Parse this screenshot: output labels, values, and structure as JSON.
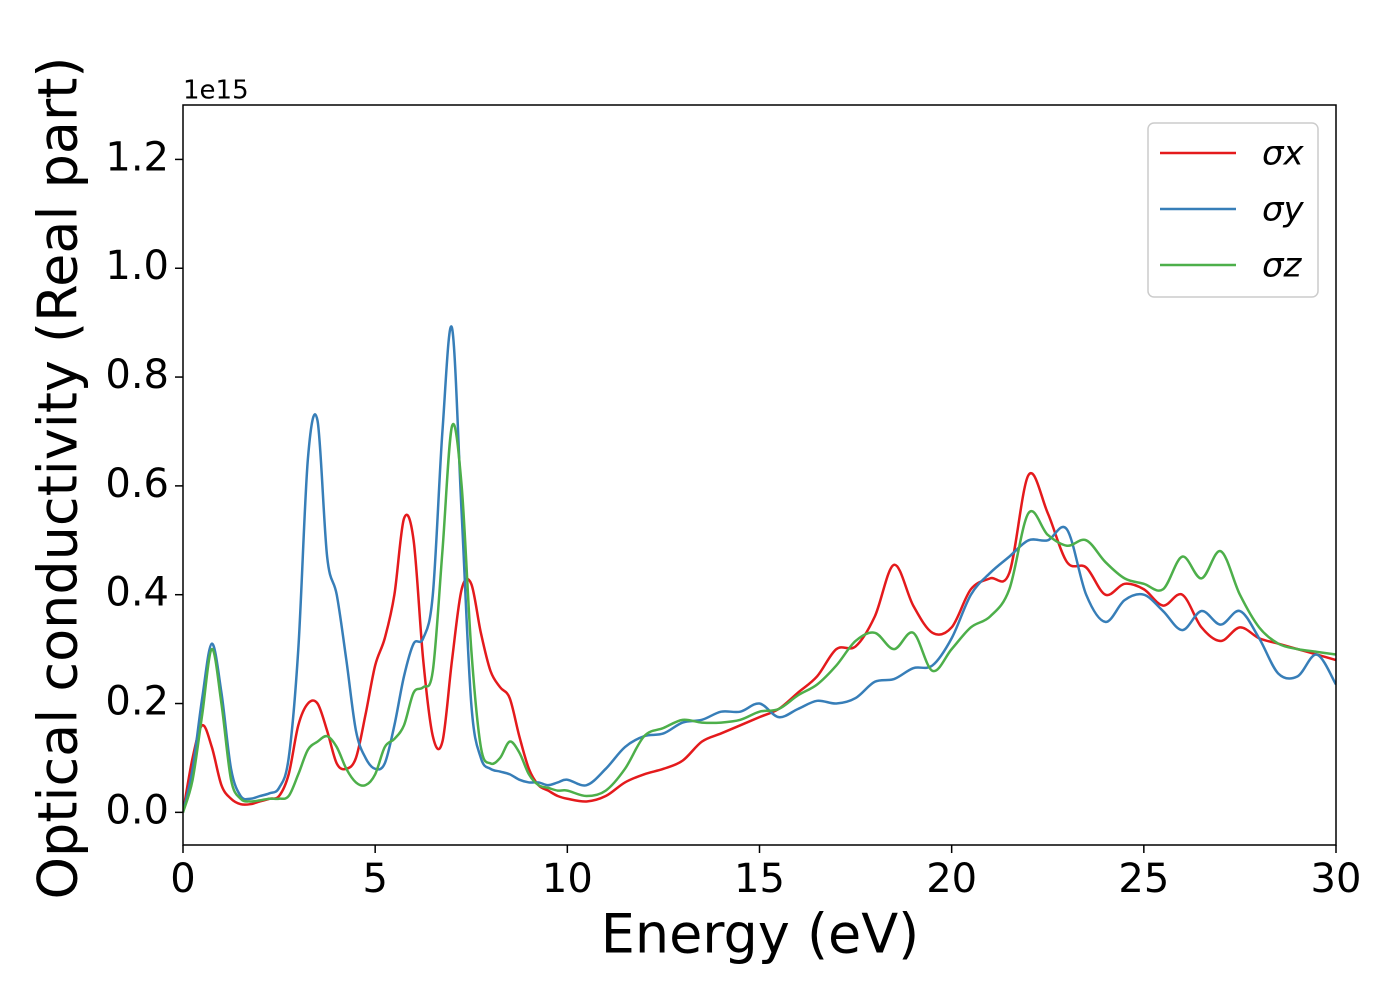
{
  "chart_data": {
    "type": "line",
    "y_label": "Optical conductivity (Real part)",
    "x_label": "Energy (eV)",
    "offset_label": "1e15",
    "xlim": [
      0,
      30
    ],
    "xticks": [
      0,
      5,
      10,
      15,
      20,
      25,
      30
    ],
    "ylim": [
      -0.06,
      1.3
    ],
    "yticks": [
      {
        "value": 0,
        "label": "0.0"
      },
      0.2,
      0.4,
      0.6,
      0.8,
      {
        "value": 1,
        "label": "1.0"
      },
      1.2
    ],
    "legend": "upper right",
    "grid": false,
    "x": [
      0,
      0.25,
      0.5,
      0.75,
      1,
      1.25,
      1.5,
      1.75,
      2,
      2.25,
      2.5,
      2.75,
      3,
      3.25,
      3.5,
      3.75,
      4,
      4.25,
      4.5,
      4.75,
      5,
      5.25,
      5.5,
      5.75,
      6,
      6.25,
      6.5,
      6.75,
      7,
      7.25,
      7.5,
      7.75,
      8,
      8.25,
      8.5,
      8.75,
      9,
      9.25,
      9.5,
      9.75,
      10,
      10.5,
      11,
      11.5,
      12,
      12.5,
      13,
      13.5,
      14,
      14.5,
      15,
      15.5,
      16,
      16.5,
      17,
      17.5,
      18,
      18.5,
      19,
      19.5,
      20,
      20.5,
      21,
      21.5,
      22,
      22.5,
      23,
      23.5,
      24,
      24.5,
      25,
      25.5,
      26,
      26.5,
      27,
      27.5,
      28,
      28.5,
      29,
      29.5,
      30
    ],
    "series": [
      {
        "name": "σx",
        "color": "#e41a1c",
        "values": [
          0,
          0.1,
          0.16,
          0.12,
          0.05,
          0.025,
          0.015,
          0.015,
          0.02,
          0.025,
          0.03,
          0.07,
          0.16,
          0.2,
          0.2,
          0.15,
          0.09,
          0.08,
          0.1,
          0.18,
          0.27,
          0.32,
          0.4,
          0.54,
          0.5,
          0.28,
          0.14,
          0.13,
          0.28,
          0.41,
          0.42,
          0.33,
          0.26,
          0.23,
          0.21,
          0.14,
          0.08,
          0.05,
          0.04,
          0.03,
          0.025,
          0.02,
          0.03,
          0.055,
          0.07,
          0.08,
          0.095,
          0.13,
          0.145,
          0.16,
          0.175,
          0.19,
          0.22,
          0.25,
          0.3,
          0.305,
          0.36,
          0.455,
          0.38,
          0.33,
          0.34,
          0.41,
          0.43,
          0.44,
          0.62,
          0.55,
          0.46,
          0.45,
          0.4,
          0.42,
          0.41,
          0.38,
          0.4,
          0.34,
          0.315,
          0.34,
          0.32,
          0.31,
          0.3,
          0.29,
          0.28
        ]
      },
      {
        "name": "σy",
        "color": "#377eb8",
        "values": [
          0,
          0.08,
          0.21,
          0.31,
          0.22,
          0.08,
          0.03,
          0.025,
          0.03,
          0.035,
          0.045,
          0.1,
          0.3,
          0.65,
          0.72,
          0.47,
          0.4,
          0.28,
          0.15,
          0.1,
          0.08,
          0.09,
          0.16,
          0.25,
          0.31,
          0.32,
          0.4,
          0.7,
          0.89,
          0.55,
          0.2,
          0.1,
          0.08,
          0.075,
          0.07,
          0.06,
          0.055,
          0.055,
          0.05,
          0.055,
          0.06,
          0.05,
          0.08,
          0.12,
          0.14,
          0.145,
          0.165,
          0.17,
          0.185,
          0.185,
          0.2,
          0.175,
          0.19,
          0.205,
          0.2,
          0.21,
          0.24,
          0.245,
          0.265,
          0.27,
          0.32,
          0.4,
          0.44,
          0.47,
          0.5,
          0.5,
          0.52,
          0.4,
          0.35,
          0.39,
          0.4,
          0.37,
          0.335,
          0.37,
          0.345,
          0.37,
          0.32,
          0.255,
          0.25,
          0.29,
          0.235
        ]
      },
      {
        "name": "σz",
        "color": "#4daf4a",
        "values": [
          0,
          0.06,
          0.18,
          0.3,
          0.2,
          0.06,
          0.025,
          0.02,
          0.022,
          0.025,
          0.025,
          0.03,
          0.07,
          0.115,
          0.13,
          0.14,
          0.12,
          0.08,
          0.055,
          0.05,
          0.07,
          0.12,
          0.135,
          0.16,
          0.22,
          0.23,
          0.26,
          0.48,
          0.71,
          0.6,
          0.3,
          0.12,
          0.09,
          0.1,
          0.13,
          0.11,
          0.07,
          0.05,
          0.045,
          0.04,
          0.04,
          0.03,
          0.04,
          0.08,
          0.14,
          0.155,
          0.17,
          0.165,
          0.165,
          0.17,
          0.185,
          0.19,
          0.215,
          0.235,
          0.27,
          0.315,
          0.33,
          0.3,
          0.33,
          0.26,
          0.3,
          0.34,
          0.36,
          0.41,
          0.55,
          0.51,
          0.49,
          0.5,
          0.46,
          0.43,
          0.42,
          0.41,
          0.47,
          0.43,
          0.48,
          0.4,
          0.34,
          0.31,
          0.3,
          0.295,
          0.29
        ]
      }
    ]
  }
}
